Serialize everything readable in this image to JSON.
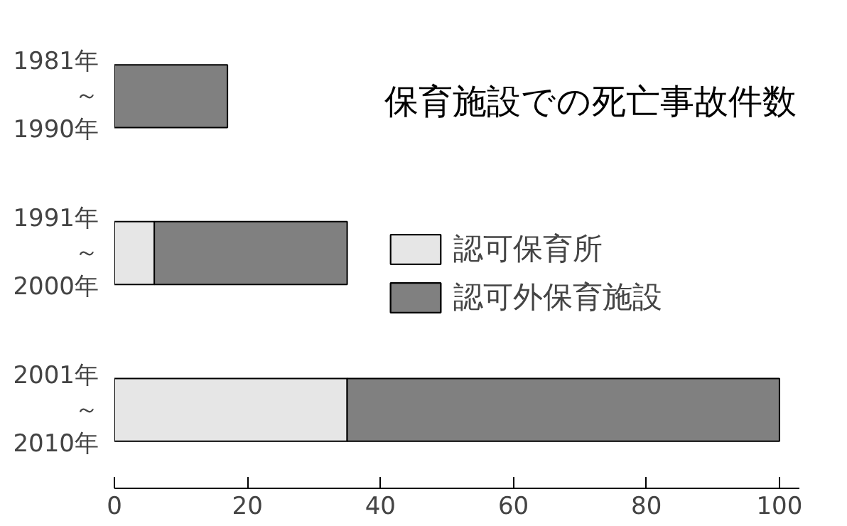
{
  "chart_data": {
    "type": "bar",
    "orientation": "horizontal",
    "stacked": true,
    "title": "保育施設での死亡事故件数",
    "categories": [
      "1981年～1990年",
      "1991年～2000年",
      "2001年～2010年"
    ],
    "series": [
      {
        "name": "認可保育所",
        "color": "#e6e6e6",
        "values": [
          null,
          6,
          35
        ]
      },
      {
        "name": "認可外保育施設",
        "color": "#808080",
        "values": [
          17,
          29,
          65
        ]
      }
    ],
    "xlim": [
      0,
      103
    ],
    "xticks": [
      0,
      20,
      40,
      60,
      80,
      100
    ],
    "grid": false,
    "legend": "right"
  }
}
